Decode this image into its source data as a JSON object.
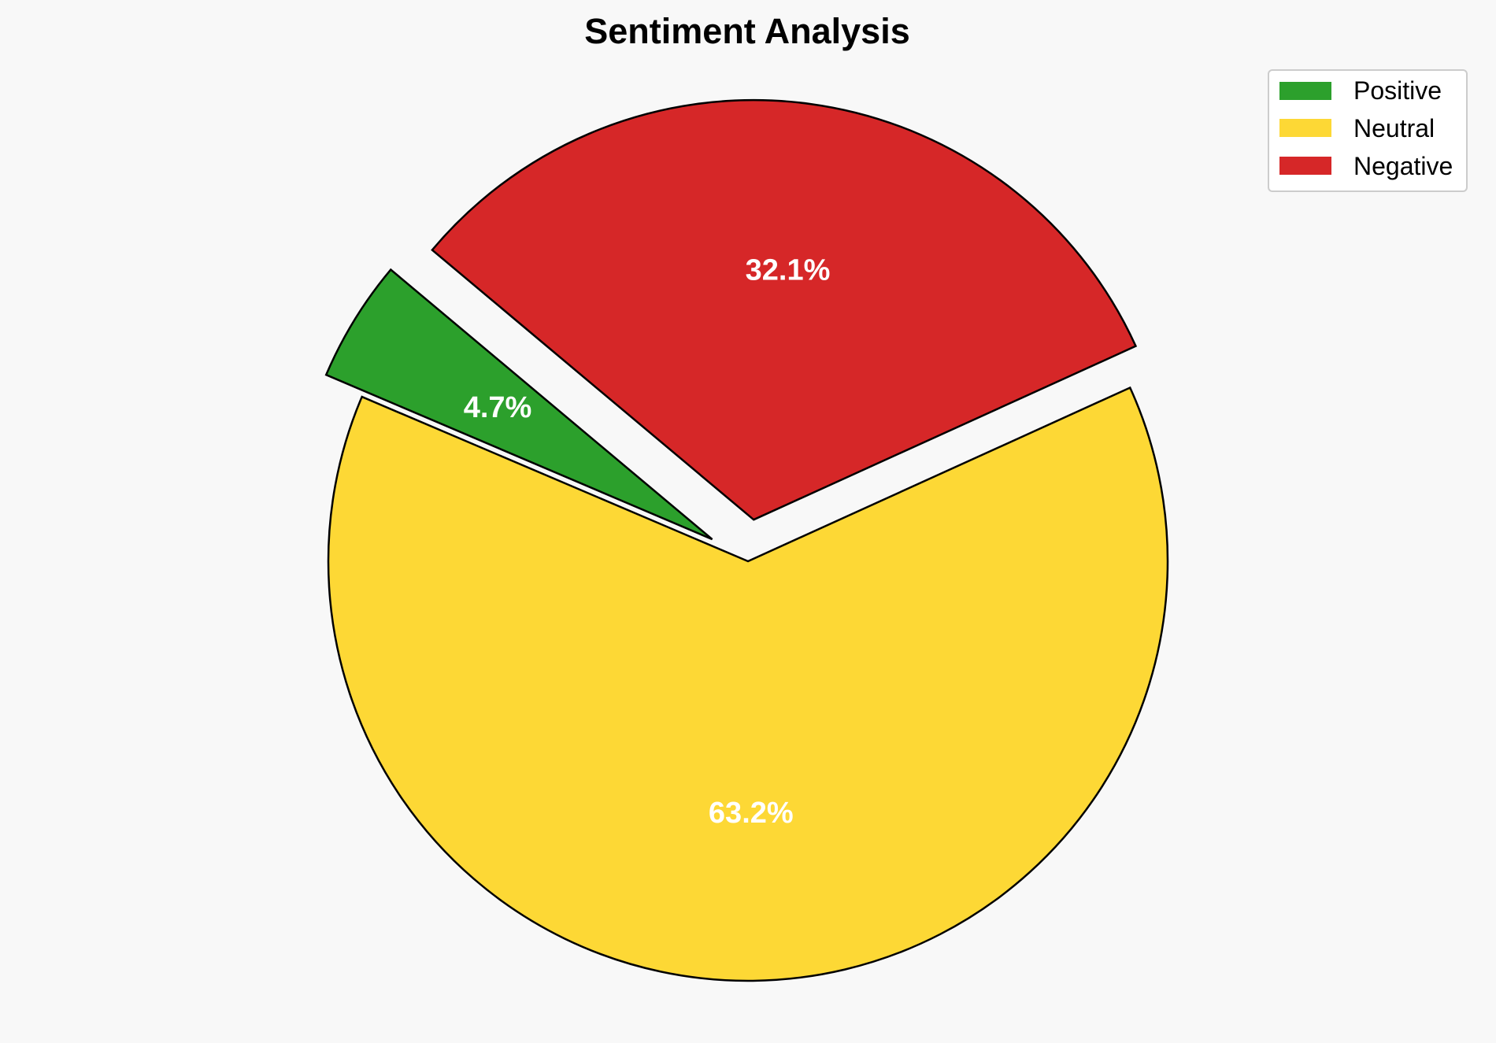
{
  "chart_data": {
    "type": "pie",
    "title": "Sentiment Analysis",
    "legend_position": "top-right",
    "slices": [
      {
        "label": "Positive",
        "value": 4.7,
        "label_text": "4.7%",
        "color": "#2ca02c",
        "exploded": true
      },
      {
        "label": "Neutral",
        "value": 63.2,
        "label_text": "63.2%",
        "color": "#fdd835",
        "exploded": false
      },
      {
        "label": "Negative",
        "value": 32.1,
        "label_text": "32.1%",
        "color": "#d62728",
        "exploded": true
      }
    ]
  }
}
